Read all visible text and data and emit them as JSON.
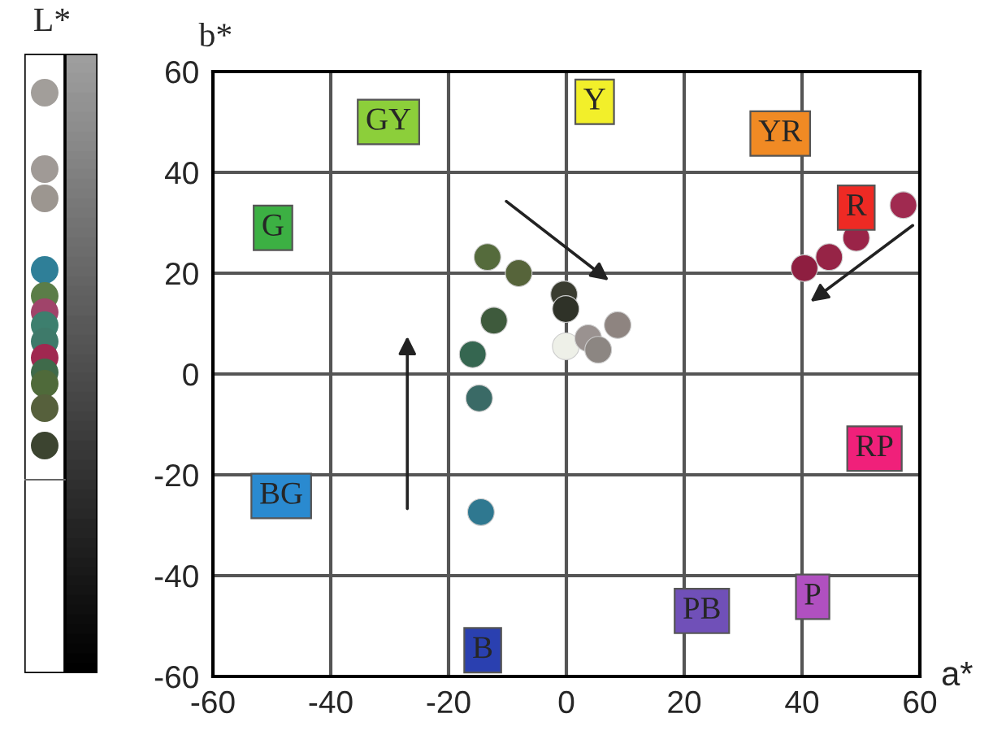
{
  "chart_data": [
    {
      "type": "other",
      "title": "L*"
    },
    {
      "type": "scatter",
      "xlabel": "a*",
      "ylabel": "b*",
      "xlim": [
        -60,
        60
      ],
      "ylim": [
        -60,
        60
      ],
      "xticks": [
        -60,
        -40,
        -20,
        0,
        20,
        40,
        60
      ],
      "yticks": [
        -60,
        -40,
        -20,
        0,
        20,
        40,
        60
      ],
      "grid": true,
      "marker": "circle",
      "x": [
        -13.4,
        -8.1,
        -12.3,
        -15.9,
        -14.8,
        -14.5,
        -0.4,
        -0.1,
        -0.1,
        3.7,
        5.4,
        8.7,
        40.4,
        44.6,
        49.2,
        57.2
      ],
      "values": [
        23.2,
        20,
        10.6,
        3.9,
        -4.8,
        -27.4,
        15.8,
        12.9,
        5.5,
        7.1,
        4.8,
        9.7,
        21,
        23.2,
        27,
        33.5
      ],
      "colors": [
        "#556b3c",
        "#56643a",
        "#3e5a3c",
        "#356650",
        "#3a6a66",
        "#2f7890",
        "#3a3c30",
        "#2f3228",
        "#eef0e8",
        "#9a9290",
        "#8c8682",
        "#8e8480",
        "#8e1e40",
        "#962446",
        "#9a2448",
        "#a02a50"
      ],
      "annotations": [
        {
          "text": "G",
          "x": -49.8,
          "y": 29
        },
        {
          "text": "GY",
          "x": -30.2,
          "y": 50
        },
        {
          "text": "Y",
          "x": 4.8,
          "y": 54
        },
        {
          "text": "YR",
          "x": 36.3,
          "y": 47.7
        },
        {
          "text": "R",
          "x": 49.2,
          "y": 33
        },
        {
          "text": "RP",
          "x": 52.3,
          "y": -14.8
        },
        {
          "text": "P",
          "x": 41.8,
          "y": -44.2
        },
        {
          "text": "PB",
          "x": 23,
          "y": -47
        },
        {
          "text": "B",
          "x": -14.2,
          "y": -54.8
        },
        {
          "text": "BG",
          "x": -48.4,
          "y": -24.2
        }
      ]
    }
  ]
}
